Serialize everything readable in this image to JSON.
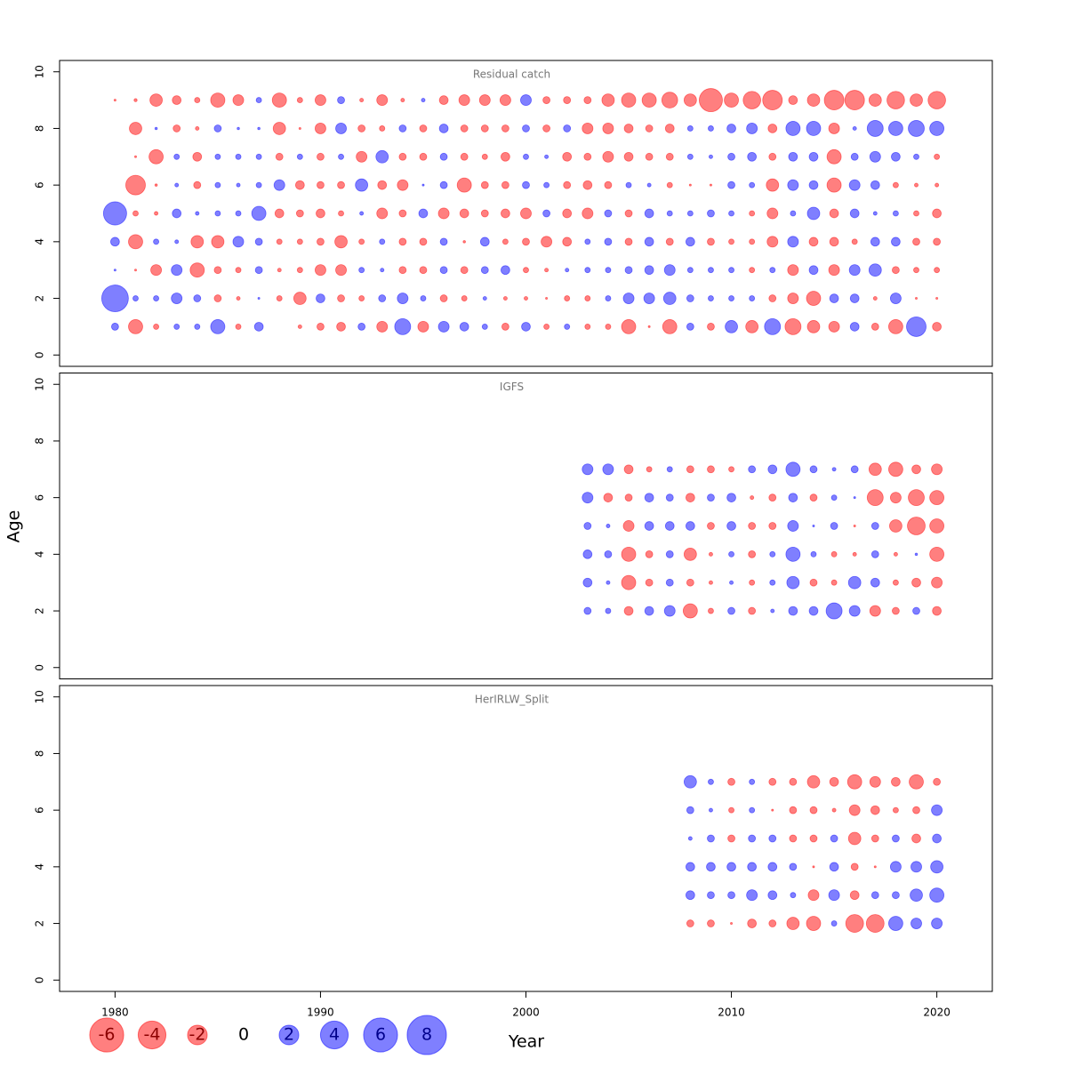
{
  "xlabel": "Year",
  "ylabel": "Age",
  "positive_color": "#0000ff",
  "negative_color": "#ff0000",
  "size_legend": {
    "values": [
      -6,
      -4,
      -2,
      0,
      2,
      4,
      6,
      8
    ]
  },
  "chart_data": [
    {
      "type": "bubble",
      "title": "Residual catch",
      "xlim": [
        1977.3,
        2022.7
      ],
      "ylim": [
        -0.4,
        10.4
      ],
      "yticks": [
        0,
        2,
        4,
        6,
        8,
        10
      ],
      "years": [
        1980,
        1981,
        1982,
        1983,
        1984,
        1985,
        1986,
        1987,
        1988,
        1989,
        1990,
        1991,
        1992,
        1993,
        1994,
        1995,
        1996,
        1997,
        1998,
        1999,
        2000,
        2001,
        2002,
        2003,
        2004,
        2005,
        2006,
        2007,
        2008,
        2009,
        2010,
        2011,
        2012,
        2013,
        2014,
        2015,
        2016,
        2017,
        2018,
        2019,
        2020
      ],
      "ages": [
        1,
        2,
        3,
        4,
        5,
        6,
        7,
        8,
        9
      ],
      "values": [
        [
          0.26,
          -1.05,
          -0.15,
          0.15,
          0.15,
          1.05,
          -0.15,
          0.4,
          null,
          -0.07,
          -0.26,
          -0.4,
          0.26,
          -0.6,
          1.33,
          -0.6,
          0.6,
          0.4,
          0.15,
          -0.26,
          0.4,
          -0.15,
          0.15,
          -0.15,
          -0.15,
          -1.05,
          -0.02,
          -1.05,
          0.26,
          -0.26,
          0.8,
          -0.8,
          1.33,
          -1.33,
          -0.8,
          -0.6,
          0.4,
          -0.26,
          -1.05,
          2.0,
          -0.4
        ],
        [
          3.7,
          0.15,
          0.15,
          0.6,
          0.26,
          -0.26,
          -0.07,
          0.02,
          -0.15,
          -0.8,
          0.4,
          -0.26,
          -0.15,
          0.26,
          0.6,
          0.15,
          -0.26,
          -0.15,
          0.07,
          -0.07,
          -0.07,
          -0.02,
          -0.15,
          -0.15,
          0.15,
          0.6,
          0.6,
          0.8,
          0.26,
          0.15,
          0.15,
          0.15,
          -0.26,
          -0.6,
          -1.05,
          0.4,
          0.4,
          -0.07,
          0.6,
          -0.02,
          -0.02
        ],
        [
          0.02,
          -0.02,
          -0.6,
          0.6,
          -1.05,
          -0.26,
          -0.15,
          0.26,
          -0.07,
          -0.15,
          -0.6,
          -0.6,
          0.15,
          0.07,
          -0.26,
          -0.26,
          0.26,
          -0.26,
          0.26,
          0.4,
          -0.15,
          -0.07,
          0.07,
          0.15,
          0.15,
          0.26,
          0.4,
          0.6,
          0.15,
          0.15,
          0.15,
          -0.15,
          0.15,
          -0.6,
          0.4,
          -0.6,
          0.6,
          0.8,
          -0.26,
          -0.15,
          -0.15
        ],
        [
          0.4,
          -1.05,
          0.15,
          0.07,
          -0.8,
          -0.8,
          0.6,
          0.26,
          -0.15,
          -0.15,
          -0.26,
          -0.8,
          -0.15,
          0.15,
          -0.26,
          -0.26,
          0.26,
          -0.03,
          0.4,
          -0.15,
          -0.26,
          -0.6,
          -0.4,
          0.15,
          0.26,
          -0.26,
          0.4,
          -0.26,
          0.4,
          -0.26,
          -0.15,
          -0.15,
          -0.6,
          0.6,
          -0.4,
          -0.4,
          -0.15,
          0.4,
          0.4,
          -0.26,
          -0.26
        ],
        [
          2.8,
          -0.15,
          -0.07,
          0.4,
          0.07,
          0.15,
          0.15,
          1.05,
          -0.4,
          -0.26,
          -0.4,
          -0.15,
          0.07,
          -0.6,
          -0.26,
          0.4,
          -0.6,
          -0.4,
          -0.26,
          -0.4,
          -0.6,
          0.26,
          -0.4,
          -0.6,
          0.26,
          -0.26,
          0.4,
          0.15,
          0.15,
          0.26,
          0.15,
          -0.15,
          -0.6,
          0.15,
          0.8,
          -0.4,
          0.4,
          0.07,
          0.15,
          -0.15,
          -0.4
        ],
        [
          null,
          -2.0,
          -0.03,
          0.07,
          -0.26,
          0.15,
          0.07,
          0.15,
          0.6,
          -0.4,
          -0.26,
          -0.26,
          0.8,
          -0.4,
          -0.6,
          0.02,
          0.26,
          -1.05,
          -0.26,
          -0.26,
          0.26,
          0.15,
          -0.26,
          -0.4,
          -0.26,
          0.15,
          0.07,
          -0.15,
          -0.02,
          -0.02,
          0.26,
          0.15,
          -0.8,
          0.6,
          0.4,
          -1.05,
          0.6,
          0.4,
          -0.15,
          -0.07,
          -0.07
        ],
        [
          null,
          -0.02,
          -1.05,
          0.15,
          -0.4,
          0.15,
          0.15,
          0.15,
          -0.26,
          0.15,
          -0.26,
          0.15,
          -0.6,
          0.8,
          -0.26,
          -0.26,
          0.26,
          -0.26,
          -0.15,
          -0.4,
          0.15,
          0.07,
          -0.4,
          -0.26,
          -0.6,
          -0.4,
          -0.26,
          -0.26,
          0.15,
          0.07,
          0.26,
          0.4,
          -0.26,
          0.4,
          0.4,
          -1.05,
          0.26,
          0.6,
          0.4,
          0.15,
          -0.15
        ],
        [
          null,
          -0.8,
          0.03,
          -0.26,
          -0.07,
          0.26,
          0.03,
          0.03,
          -0.8,
          -0.02,
          -0.6,
          0.6,
          -0.26,
          -0.15,
          0.26,
          -0.26,
          0.4,
          -0.26,
          -0.26,
          -0.26,
          0.26,
          -0.26,
          0.26,
          -0.6,
          -0.6,
          -0.4,
          -0.26,
          -0.4,
          0.15,
          0.15,
          0.4,
          0.6,
          -0.4,
          1.05,
          1.05,
          -0.6,
          0.07,
          1.33,
          1.05,
          1.33,
          1.05
        ],
        [
          -0.02,
          -0.05,
          -0.8,
          -0.4,
          -0.15,
          -1.05,
          -0.6,
          0.15,
          -1.05,
          -0.15,
          -0.6,
          0.26,
          -0.07,
          -0.6,
          -0.07,
          0.07,
          -0.4,
          -0.6,
          -0.6,
          -0.6,
          0.6,
          -0.26,
          -0.26,
          -0.26,
          -0.8,
          -1.05,
          -1.05,
          -1.3,
          -0.8,
          -2.8,
          -1.05,
          -1.6,
          -2.0,
          -0.4,
          -0.8,
          -2.0,
          -2.0,
          -0.8,
          -1.6,
          -0.8,
          -1.6
        ]
      ]
    },
    {
      "type": "bubble",
      "title": "IGFS",
      "xlim": [
        1977.3,
        2022.7
      ],
      "ylim": [
        -0.4,
        10.4
      ],
      "yticks": [
        0,
        2,
        4,
        6,
        8,
        10
      ],
      "years": [
        2003,
        2004,
        2005,
        2006,
        2007,
        2008,
        2009,
        2010,
        2011,
        2012,
        2013,
        2014,
        2015,
        2016,
        2017,
        2018,
        2019,
        2020
      ],
      "ages": [
        2,
        3,
        4,
        5,
        6,
        7
      ],
      "values": [
        [
          0.26,
          0.15,
          -0.4,
          0.4,
          0.6,
          -1.05,
          -0.15,
          0.26,
          -0.26,
          0.07,
          0.4,
          0.4,
          1.33,
          0.6,
          -0.6,
          -0.26,
          0.26,
          -0.4
        ],
        [
          0.4,
          0.07,
          -1.05,
          -0.26,
          0.26,
          -0.26,
          -0.07,
          0.07,
          -0.15,
          0.15,
          0.8,
          -0.26,
          -0.15,
          0.8,
          0.4,
          -0.15,
          -0.4,
          -0.6
        ],
        [
          0.4,
          0.26,
          -1.05,
          -0.26,
          0.26,
          -0.8,
          -0.07,
          0.15,
          -0.26,
          0.15,
          1.05,
          0.15,
          -0.15,
          -0.07,
          0.26,
          -0.07,
          0.03,
          -1.05
        ],
        [
          0.26,
          0.07,
          -0.6,
          0.4,
          0.4,
          0.4,
          -0.26,
          0.4,
          -0.26,
          -0.26,
          0.6,
          0.02,
          0.26,
          -0.02,
          0.26,
          -0.8,
          -1.64,
          -1.05
        ],
        [
          0.6,
          -0.4,
          -0.26,
          0.4,
          0.26,
          -0.4,
          0.26,
          0.4,
          -0.07,
          -0.26,
          0.4,
          -0.26,
          0.15,
          0.02,
          -1.33,
          -0.6,
          -1.33,
          -1.05
        ],
        [
          0.6,
          0.6,
          -0.4,
          -0.15,
          0.15,
          -0.26,
          -0.26,
          -0.15,
          0.26,
          0.4,
          1.05,
          0.26,
          0.07,
          0.26,
          -0.8,
          -1.05,
          -0.4,
          -0.6
        ]
      ]
    },
    {
      "type": "bubble",
      "title": "HerIRLW_Split",
      "xlim": [
        1977.3,
        2022.7
      ],
      "ylim": [
        -0.4,
        10.4
      ],
      "yticks": [
        0,
        2,
        4,
        6,
        8,
        10
      ],
      "xticks": [
        1980,
        1990,
        2000,
        2010,
        2020
      ],
      "years": [
        2008,
        2009,
        2010,
        2011,
        2012,
        2013,
        2014,
        2015,
        2016,
        2017,
        2018,
        2019,
        2020
      ],
      "ages": [
        2,
        3,
        4,
        5,
        6,
        7
      ],
      "values": [
        [
          -0.26,
          -0.26,
          -0.02,
          -0.4,
          -0.26,
          -0.8,
          -1.05,
          0.15,
          -1.64,
          -1.64,
          1.05,
          0.6,
          0.6
        ],
        [
          0.4,
          0.26,
          0.26,
          0.6,
          0.4,
          0.15,
          -0.6,
          0.6,
          -0.4,
          0.26,
          0.26,
          0.8,
          1.05
        ],
        [
          0.4,
          0.4,
          0.4,
          0.4,
          0.4,
          0.26,
          -0.02,
          0.4,
          -0.26,
          -0.02,
          0.6,
          0.6,
          0.8
        ],
        [
          0.07,
          0.26,
          -0.26,
          0.26,
          0.26,
          -0.26,
          -0.26,
          0.26,
          -0.8,
          -0.26,
          0.26,
          -0.4,
          0.4
        ],
        [
          0.26,
          0.07,
          -0.15,
          0.15,
          -0.02,
          -0.26,
          -0.26,
          -0.07,
          -0.6,
          -0.4,
          -0.15,
          -0.26,
          0.6
        ],
        [
          0.8,
          0.15,
          -0.26,
          0.15,
          -0.26,
          -0.26,
          -0.8,
          -0.4,
          -1.05,
          -0.6,
          -0.4,
          -1.05,
          -0.26
        ]
      ]
    }
  ]
}
